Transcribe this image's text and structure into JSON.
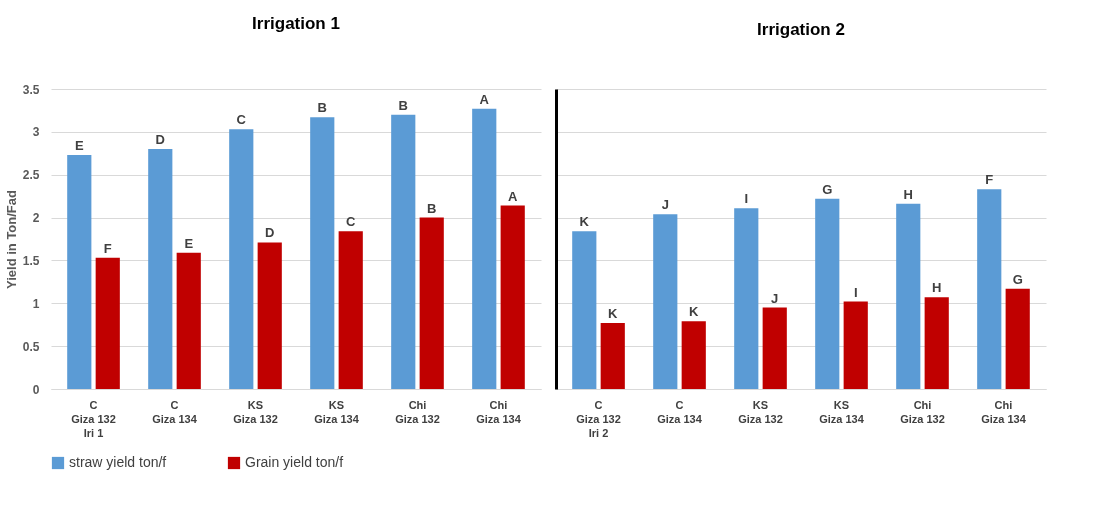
{
  "chart_data": [
    {
      "type": "bar",
      "title": "Irrigation 1",
      "ylabel": "Yield in Ton/Fad",
      "categories": [
        "C\nGiza 132\nIri 1",
        "C\nGiza 134",
        "KS\nGiza 132",
        "KS\nGiza 134",
        "Chi\nGiza 132",
        "Chi\nGiza 134"
      ],
      "series": [
        {
          "name": "straw yield ton/f",
          "color": "#5b9bd5",
          "values": [
            2.73,
            2.8,
            3.03,
            3.17,
            3.2,
            3.27
          ],
          "value_labels": [
            "E",
            "D",
            "C",
            "B",
            "B",
            "A"
          ]
        },
        {
          "name": "Grain yield ton/f",
          "color": "#c00000",
          "values": [
            1.53,
            1.59,
            1.71,
            1.84,
            2.0,
            2.14
          ],
          "value_labels": [
            "F",
            "E",
            "D",
            "C",
            "B",
            "A"
          ]
        }
      ],
      "ylim": [
        0,
        3.5
      ],
      "yticks": [
        0,
        0.5,
        1,
        1.5,
        2,
        2.5,
        3,
        3.5
      ],
      "grid": "y",
      "legend": "bottom"
    },
    {
      "type": "bar",
      "title": "Irrigation 2",
      "categories": [
        "C\nGiza 132\nIri 2",
        "C\nGiza 134",
        "KS\nGiza 132",
        "KS\nGiza 134",
        "Chi\nGiza 132",
        "Chi\nGiza 134"
      ],
      "series": [
        {
          "name": "straw yield ton/f",
          "color": "#5b9bd5",
          "values": [
            1.84,
            2.04,
            2.11,
            2.22,
            2.16,
            2.33
          ],
          "value_labels": [
            "K",
            "J",
            "I",
            "G",
            "H",
            "F"
          ]
        },
        {
          "name": "Grain yield ton/f",
          "color": "#c00000",
          "values": [
            0.77,
            0.79,
            0.95,
            1.02,
            1.07,
            1.17
          ],
          "value_labels": [
            "K",
            "K",
            "J",
            "I",
            "H",
            "G"
          ]
        }
      ],
      "ylim": [
        0,
        3.5
      ],
      "yticks": [
        0,
        0.5,
        1,
        1.5,
        2,
        2.5,
        3,
        3.5
      ],
      "grid": "y",
      "legend": "bottom",
      "tick_labels": "x"
    }
  ]
}
